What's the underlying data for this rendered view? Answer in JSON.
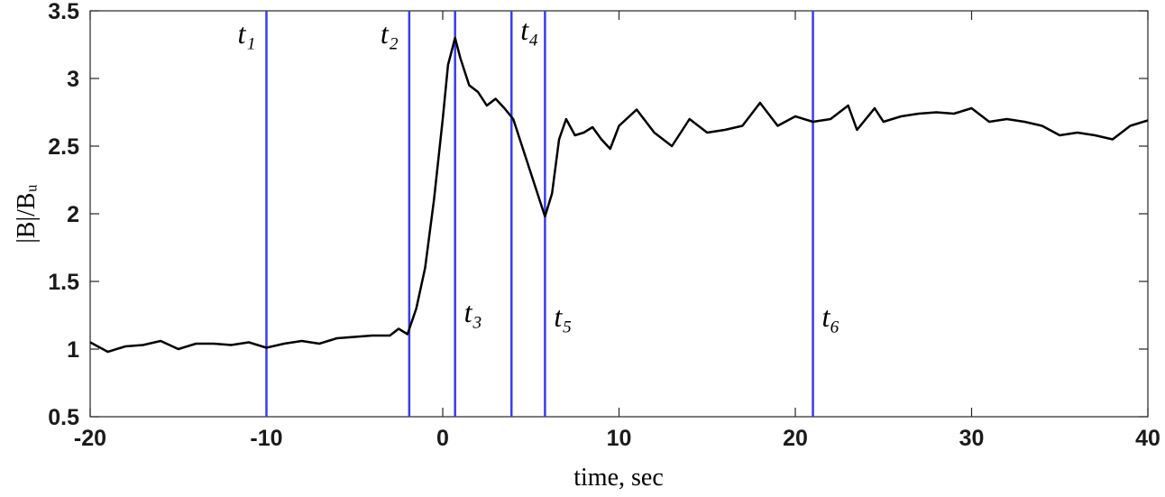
{
  "chart_data": {
    "type": "line",
    "xlabel": "time, sec",
    "ylabel": "|B|/Bᵤ",
    "x": [
      -20,
      -19,
      -18,
      -17,
      -16,
      -15,
      -14,
      -13,
      -12,
      -11,
      -10,
      -9,
      -8,
      -7,
      -6,
      -5,
      -4,
      -3,
      -2.5,
      -2,
      -1.5,
      -1,
      -0.5,
      0,
      0.3,
      0.7,
      1,
      1.5,
      2,
      2.5,
      3,
      3.5,
      4,
      4.5,
      5,
      5.5,
      5.8,
      6.2,
      6.6,
      7,
      7.5,
      8,
      8.5,
      9,
      9.5,
      10,
      11,
      12,
      13,
      14,
      15,
      16,
      17,
      18,
      19,
      20,
      21,
      22,
      23,
      23.5,
      24.5,
      25,
      26,
      27,
      28,
      29,
      30,
      31,
      32,
      33,
      34,
      35,
      36,
      37,
      38,
      39,
      40
    ],
    "values": [
      1.05,
      0.98,
      1.02,
      1.03,
      1.06,
      1.0,
      1.04,
      1.04,
      1.03,
      1.05,
      1.01,
      1.04,
      1.06,
      1.04,
      1.08,
      1.09,
      1.1,
      1.1,
      1.15,
      1.11,
      1.3,
      1.6,
      2.1,
      2.7,
      3.1,
      3.3,
      3.15,
      2.95,
      2.9,
      2.8,
      2.85,
      2.78,
      2.7,
      2.5,
      2.3,
      2.1,
      1.98,
      2.15,
      2.55,
      2.7,
      2.58,
      2.6,
      2.64,
      2.55,
      2.48,
      2.65,
      2.77,
      2.6,
      2.5,
      2.7,
      2.6,
      2.62,
      2.65,
      2.82,
      2.65,
      2.72,
      2.68,
      2.7,
      2.8,
      2.62,
      2.78,
      2.68,
      2.72,
      2.74,
      2.75,
      2.74,
      2.78,
      2.68,
      2.7,
      2.68,
      2.65,
      2.58,
      2.6,
      2.58,
      2.55,
      2.65,
      2.69
    ],
    "color": "#000000",
    "markers": [
      {
        "label": "t₁",
        "x": -10
      },
      {
        "label": "t₂",
        "x": -1.9
      },
      {
        "label": "t₃",
        "x": 0.7
      },
      {
        "label": "t₄",
        "x": 3.9
      },
      {
        "label": "t₅",
        "x": 5.8
      },
      {
        "label": "t₆",
        "x": 21
      }
    ],
    "marker_color": "#3b3bef",
    "xlim": [
      -20,
      40
    ],
    "xticks": [
      -20,
      -10,
      0,
      10,
      20,
      30,
      40
    ],
    "ylim": [
      0.5,
      3.5
    ],
    "yticks": [
      0.5,
      1,
      1.5,
      2,
      2.5,
      3,
      3.5
    ]
  }
}
